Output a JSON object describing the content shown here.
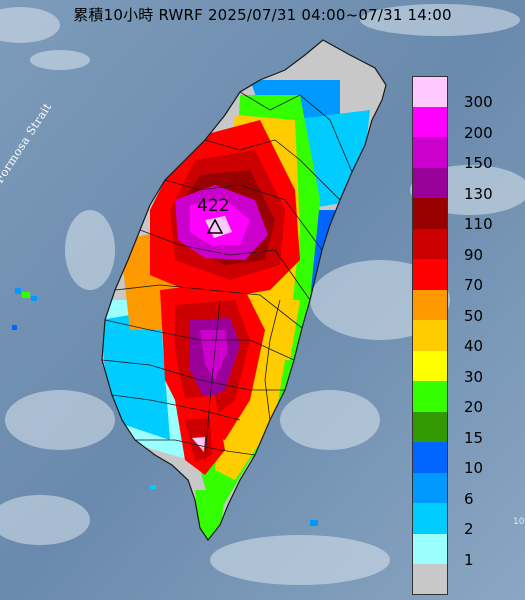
{
  "title": "累積10小時 RWRF 2025/07/31 04:00~07/31 14:00",
  "strait_label": "Formosa Strait",
  "max_marker": {
    "value_label": "422"
  },
  "legend": {
    "items": [
      {
        "label": "300",
        "color": "#ffc9ff"
      },
      {
        "label": "200",
        "color": "#ff00ff"
      },
      {
        "label": "150",
        "color": "#cc00cc"
      },
      {
        "label": "130",
        "color": "#990099"
      },
      {
        "label": "110",
        "color": "#990000"
      },
      {
        "label": "90",
        "color": "#cc0000"
      },
      {
        "label": "70",
        "color": "#ff0000"
      },
      {
        "label": "50",
        "color": "#ff9900"
      },
      {
        "label": "40",
        "color": "#ffcc00"
      },
      {
        "label": "30",
        "color": "#ffff00"
      },
      {
        "label": "20",
        "color": "#33ff00"
      },
      {
        "label": "15",
        "color": "#339900"
      },
      {
        "label": "10",
        "color": "#0066ff"
      },
      {
        "label": "6",
        "color": "#0099ff"
      },
      {
        "label": "2",
        "color": "#00ccff"
      },
      {
        "label": "1",
        "color": "#99ffff"
      },
      {
        "label": "",
        "color": "#c8c8c8"
      }
    ]
  },
  "corner_text": "10",
  "colors": {
    "ocean": "#6f8fae",
    "land_dry": "#c8c8c8",
    "borders": "#1a1a1a"
  }
}
